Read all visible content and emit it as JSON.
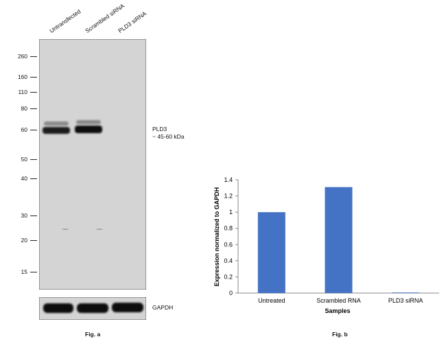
{
  "panel_a": {
    "lanes": [
      "Untransfected",
      "Scrambled siRNA",
      "PLD3 siRNA"
    ],
    "markers": [
      "260",
      "160",
      "110",
      "80",
      "60",
      "50",
      "40",
      "30",
      "20",
      "15"
    ],
    "band_label_line1": "PLD3",
    "band_label_line2": "~ 45-60 kDa",
    "loading_control": "GAPDH",
    "caption": "Fig. a"
  },
  "panel_b": {
    "caption": "Fig. b"
  },
  "chart_data": {
    "type": "bar",
    "categories": [
      "Untreated",
      "Scrambled RNA",
      "PLD3 siRNA"
    ],
    "values": [
      1.0,
      1.31,
      0.0
    ],
    "xlabel": "Samples",
    "ylabel": "Expression normalized to GAPDH",
    "ylim": [
      0,
      1.4
    ],
    "yticks": [
      "0",
      "0.2",
      "0.4",
      "0.6",
      "0.8",
      "1",
      "1.2",
      "1.4"
    ],
    "grid": false,
    "bar_color": "#4472c4"
  }
}
